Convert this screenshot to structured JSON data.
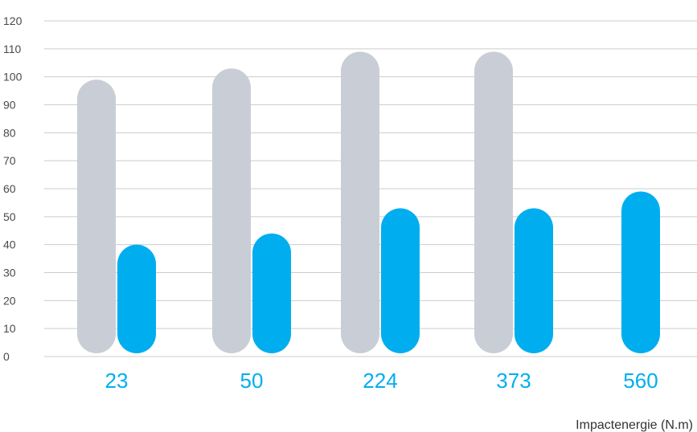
{
  "chart_data": {
    "type": "bar",
    "categories": [
      "23",
      "50",
      "224",
      "373",
      "560"
    ],
    "series": [
      {
        "values": [
          99,
          103,
          109,
          109,
          null
        ],
        "color": "#c9ced6"
      },
      {
        "values": [
          40,
          44,
          53,
          53,
          59
        ],
        "color": "#00aeef"
      }
    ],
    "xlabel": "Impactenergie (N.m)",
    "ylabel": "",
    "ylim": [
      0,
      120
    ],
    "yticks": [
      0,
      10,
      20,
      30,
      40,
      50,
      60,
      70,
      80,
      90,
      100,
      110,
      120
    ],
    "grid": true,
    "category_label_color": "#00aeef",
    "grid_color": "#cccccc"
  }
}
